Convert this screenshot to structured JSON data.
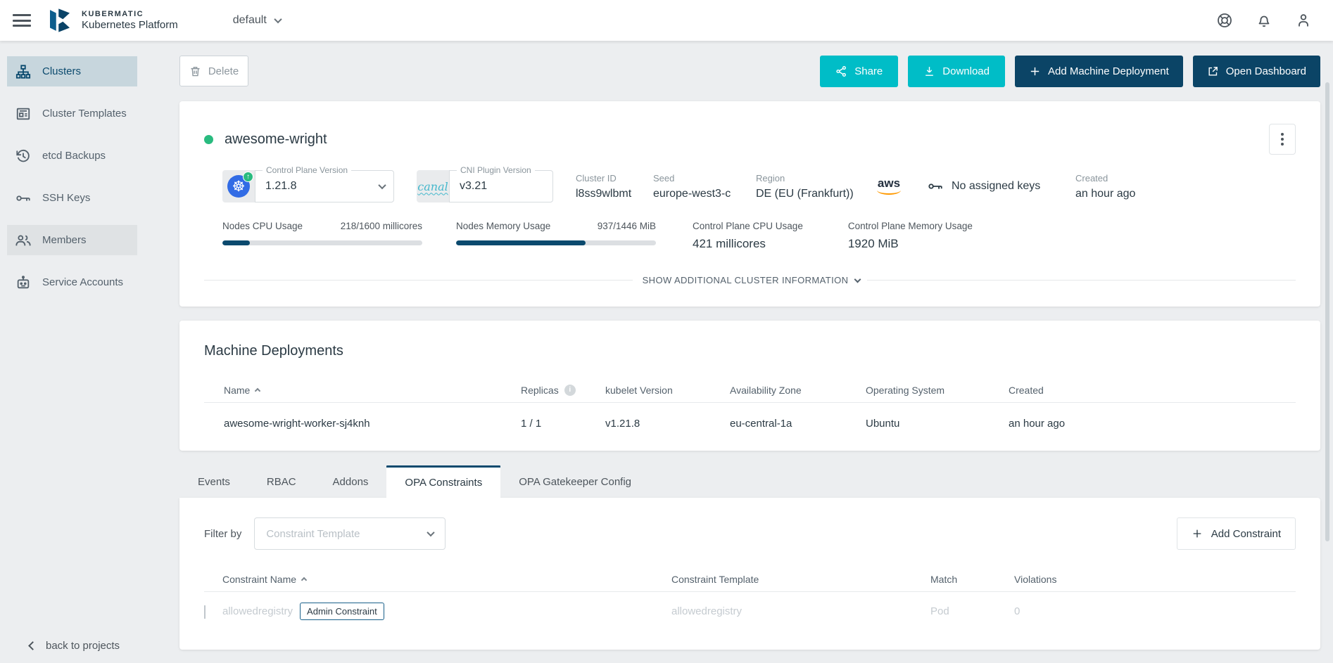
{
  "colors": {
    "accent_teal": "#00bdc7",
    "primary_navy": "#0b4466",
    "bar_navy": "#0b4a6e",
    "status_green": "#29bb7f"
  },
  "glyphs": {
    "info": "i",
    "k8s_wheel": "☸",
    "upgrade_arrow": "↑"
  },
  "header": {
    "brand_top": "KUBERMATIC",
    "brand_bottom": "Kubernetes Platform",
    "project": "default"
  },
  "sidebar": {
    "items": [
      {
        "label": "Clusters",
        "icon": "cluster-icon",
        "active": true
      },
      {
        "label": "Cluster Templates",
        "icon": "cluster-templates-icon",
        "active": false
      },
      {
        "label": "etcd Backups",
        "icon": "etcd-backups-icon",
        "active": false
      },
      {
        "label": "SSH Keys",
        "icon": "ssh-keys-icon",
        "active": false
      },
      {
        "label": "Members",
        "icon": "members-icon",
        "active": false
      },
      {
        "label": "Service Accounts",
        "icon": "service-accounts-icon",
        "active": false
      }
    ],
    "back_label": "back to projects"
  },
  "toolbar": {
    "delete": "Delete",
    "share": "Share",
    "download": "Download",
    "add_machine_deployment": "Add Machine Deployment",
    "open_dashboard": "Open Dashboard"
  },
  "cluster": {
    "name": "awesome-wright",
    "status": "healthy",
    "control_plane": {
      "label": "Control Plane Version",
      "value": "1.21.8"
    },
    "cni": {
      "label": "CNI Plugin Version",
      "value": "v3.21",
      "logo_text": "canal"
    },
    "cluster_id": {
      "label": "Cluster ID",
      "value": "l8ss9wlbmt"
    },
    "seed": {
      "label": "Seed",
      "value": "europe-west3-c"
    },
    "region": {
      "label": "Region",
      "value": "DE (EU (Frankfurt))"
    },
    "provider": {
      "name": "aws"
    },
    "ssh_keys": "No assigned keys",
    "created": {
      "label": "Created",
      "value": "an hour ago"
    },
    "usage": {
      "nodes_cpu": {
        "label": "Nodes CPU Usage",
        "value": "218/1600 millicores",
        "percent": 13.6
      },
      "nodes_memory": {
        "label": "Nodes Memory Usage",
        "value": "937/1446 MiB",
        "percent": 64.8
      },
      "control_plane_cpu": {
        "label": "Control Plane CPU Usage",
        "value": "421 millicores"
      },
      "control_plane_memory": {
        "label": "Control Plane Memory Usage",
        "value": "1920 MiB"
      }
    },
    "show_more": "SHOW ADDITIONAL CLUSTER INFORMATION"
  },
  "machine_deployments": {
    "title": "Machine Deployments",
    "columns": {
      "name": "Name",
      "replicas": "Replicas",
      "kubelet": "kubelet Version",
      "zone": "Availability Zone",
      "os": "Operating System",
      "created": "Created"
    },
    "rows": [
      {
        "status": "healthy",
        "name": "awesome-wright-worker-sj4knh",
        "replicas": "1 / 1",
        "kubelet": "v1.21.8",
        "zone": "eu-central-1a",
        "os": "Ubuntu",
        "created": "an hour ago"
      }
    ]
  },
  "tabs": {
    "items": [
      {
        "label": "Events",
        "active": false
      },
      {
        "label": "RBAC",
        "active": false
      },
      {
        "label": "Addons",
        "active": false
      },
      {
        "label": "OPA Constraints",
        "active": true
      },
      {
        "label": "OPA Gatekeeper Config",
        "active": false
      }
    ]
  },
  "opa": {
    "filter_label": "Filter by",
    "filter_placeholder": "Constraint Template",
    "add_button": "Add Constraint",
    "columns": {
      "name": "Constraint Name",
      "template": "Constraint Template",
      "match": "Match",
      "violations": "Violations"
    },
    "rows": [
      {
        "name": "allowedregistry",
        "badge": "Admin Constraint",
        "template": "allowedregistry",
        "match": "Pod",
        "violations": "0"
      }
    ]
  }
}
